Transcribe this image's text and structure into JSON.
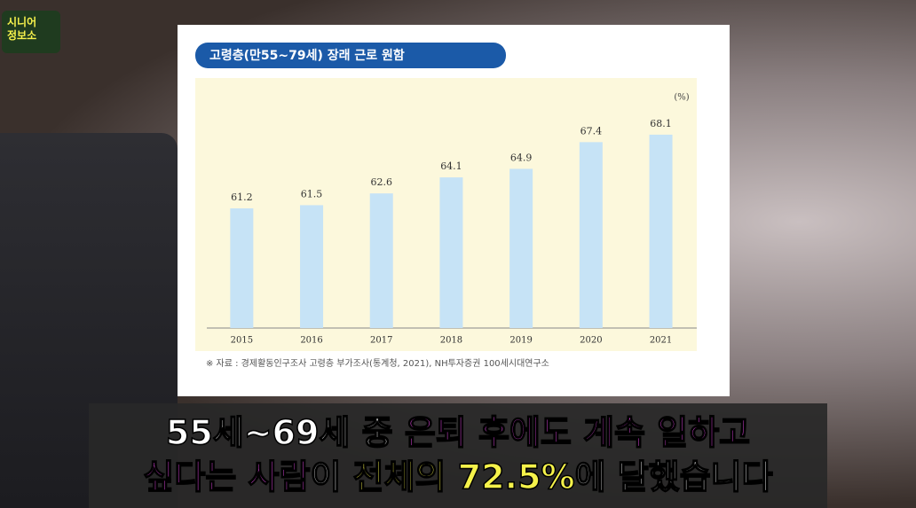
{
  "logo": {
    "line1": "시니어",
    "line2": "정보소"
  },
  "chart_data": {
    "type": "bar",
    "title": "고령층(만55~79세) 장래 근로 원함",
    "unit": "(%)",
    "categories": [
      "2015",
      "2016",
      "2017",
      "2018",
      "2019",
      "2020",
      "2021"
    ],
    "values": [
      61.2,
      61.5,
      62.6,
      64.1,
      64.9,
      67.4,
      68.1
    ],
    "color": "#c6e3f6",
    "ylim": [
      50,
      70
    ],
    "source": "※ 자료 : 경제활동인구조사 고령층 부가조사(통계청, 2021), NH투자증권 100세시대연구소"
  },
  "caption": {
    "lines": [
      [
        {
          "text": "55세~69세 중 ",
          "color": "#ffffff"
        },
        {
          "text": "은퇴 후에도 계속 일하고",
          "color": "#f04cf0"
        }
      ],
      [
        {
          "text": "싶다는 사람",
          "color": "#f04cf0"
        },
        {
          "text": "이 ",
          "color": "#ffffff"
        },
        {
          "text": "전체의 72.5%",
          "color": "#f5f24a"
        },
        {
          "text": "에 달했습니다",
          "color": "#ffffff"
        }
      ]
    ]
  }
}
